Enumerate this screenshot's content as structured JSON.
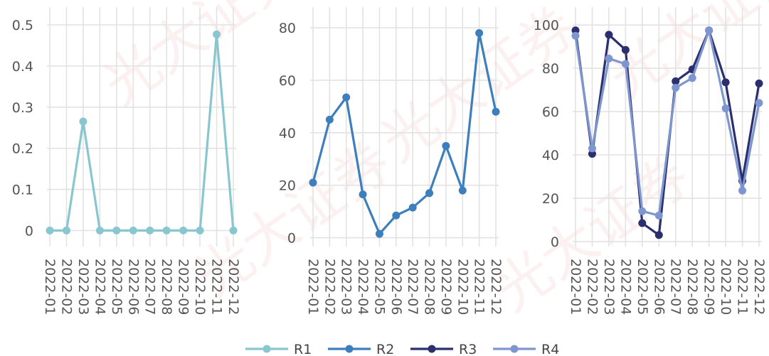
{
  "colors": {
    "R1": "#88c6d0",
    "R2": "#3d7fbc",
    "R3": "#2b2f6e",
    "R4": "#7e96cf",
    "grid": "#e2e2e2",
    "tick_text": "#555555"
  },
  "watermark_text": "光大证券",
  "legend": {
    "position": "bottom-center",
    "items": [
      "R1",
      "R2",
      "R3",
      "R4"
    ]
  },
  "chart_data": [
    {
      "type": "line",
      "panel": "left",
      "title": "",
      "xlabel": "",
      "ylabel": "",
      "grid": true,
      "categories": [
        "2022-01",
        "2022-02",
        "2022-03",
        "2022-04",
        "2022-05",
        "2022-06",
        "2022-07",
        "2022-08",
        "2022-09",
        "2022-10",
        "2022-11",
        "2022-12"
      ],
      "ylim": [
        -0.02,
        0.5
      ],
      "yticks": [
        0,
        0.1,
        0.2,
        0.3,
        0.4,
        0.5
      ],
      "ytick_labels": [
        "0",
        "0.1",
        "0.2",
        "0.3",
        "0.4",
        "0.5"
      ],
      "series": [
        {
          "name": "R1",
          "color": "#88c6d0",
          "values": [
            0,
            0,
            0.265,
            0,
            0,
            0,
            0,
            0,
            0,
            0,
            0.477,
            0
          ]
        }
      ]
    },
    {
      "type": "line",
      "panel": "middle",
      "title": "",
      "xlabel": "",
      "ylabel": "",
      "grid": true,
      "categories": [
        "2022-01",
        "2022-02",
        "2022-03",
        "2022-04",
        "2022-05",
        "2022-06",
        "2022-07",
        "2022-08",
        "2022-09",
        "2022-10",
        "2022-11",
        "2022-12"
      ],
      "ylim": [
        -2,
        83
      ],
      "yticks": [
        0,
        20,
        40,
        60,
        80
      ],
      "ytick_labels": [
        "0",
        "20",
        "40",
        "60",
        "80"
      ],
      "series": [
        {
          "name": "R2",
          "color": "#3d7fbc",
          "values": [
            21,
            45,
            53.5,
            16.5,
            1.5,
            8.5,
            11.5,
            17,
            35,
            18,
            78,
            48
          ]
        }
      ]
    },
    {
      "type": "line",
      "panel": "right",
      "title": "",
      "xlabel": "",
      "ylabel": "",
      "grid": true,
      "categories": [
        "2022-01",
        "2022-02",
        "2022-03",
        "2022-04",
        "2022-05",
        "2022-06",
        "2022-07",
        "2022-08",
        "2022-09",
        "2022-10",
        "2022-11",
        "2022-12"
      ],
      "ylim": [
        -2,
        103
      ],
      "yticks": [
        0,
        20,
        40,
        60,
        80,
        100
      ],
      "ytick_labels": [
        "0",
        "20",
        "40",
        "60",
        "80",
        "100"
      ],
      "series": [
        {
          "name": "R3",
          "color": "#2b2f6e",
          "values": [
            97.5,
            40.5,
            95.5,
            88.5,
            8.5,
            3,
            74,
            79.5,
            97.5,
            73.5,
            28,
            73
          ]
        },
        {
          "name": "R4",
          "color": "#7e96cf",
          "values": [
            95,
            43,
            84.5,
            82,
            14,
            12,
            71,
            75.5,
            97.5,
            61.5,
            23.5,
            64
          ]
        }
      ]
    }
  ]
}
